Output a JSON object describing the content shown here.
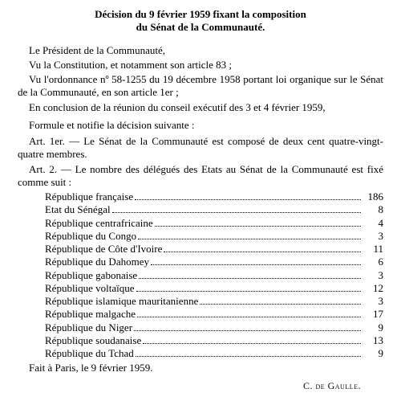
{
  "title_line1": "Décision du 9 février 1959 fixant la composition",
  "title_line2": "du Sénat de la Communauté.",
  "preamble": {
    "president": "Le Président de la Communauté,",
    "vu_constitution": "Vu la Constitution, et notamment son article 83 ;",
    "vu_ordonnance": "Vu l'ordonnance nº 58-1255 du 19 décembre 1958 portant loi organique sur le Sénat de la Communauté, en son article 1er ;",
    "en_conclusion": "En conclusion de la réunion du conseil exécutif des 3 et 4 février 1959,",
    "formule": "Formule et notifie la décision suivante :"
  },
  "art1": {
    "label": "Art. 1er.",
    "text": " — Le Sénat de la Communauté est composé de deux cent quatre-vingt-quatre membres."
  },
  "art2": {
    "label": "Art. 2.",
    "text": " — Le nombre des délégués des Etats au Sénat de la Communauté est fixé comme suit :"
  },
  "delegates": [
    {
      "name": "République française",
      "count": "186"
    },
    {
      "name": "Etat du Sénégal",
      "count": "8"
    },
    {
      "name": "République centrafricaine",
      "count": "4"
    },
    {
      "name": "République du Congo",
      "count": "3"
    },
    {
      "name": "République de Côte d'Ivoire",
      "count": "11"
    },
    {
      "name": "République du Dahomey",
      "count": "6"
    },
    {
      "name": "République gabonaise",
      "count": "3"
    },
    {
      "name": "République voltaïque",
      "count": "12"
    },
    {
      "name": "République islamique mauritanienne",
      "count": "3"
    },
    {
      "name": "République malgache",
      "count": "17"
    },
    {
      "name": "République du Niger",
      "count": "9"
    },
    {
      "name": "République soudanaise",
      "count": "13"
    },
    {
      "name": "République du Tchad",
      "count": "9"
    }
  ],
  "fait": "Fait à Paris, le 9 février 1959.",
  "signature": "C. de Gaulle."
}
